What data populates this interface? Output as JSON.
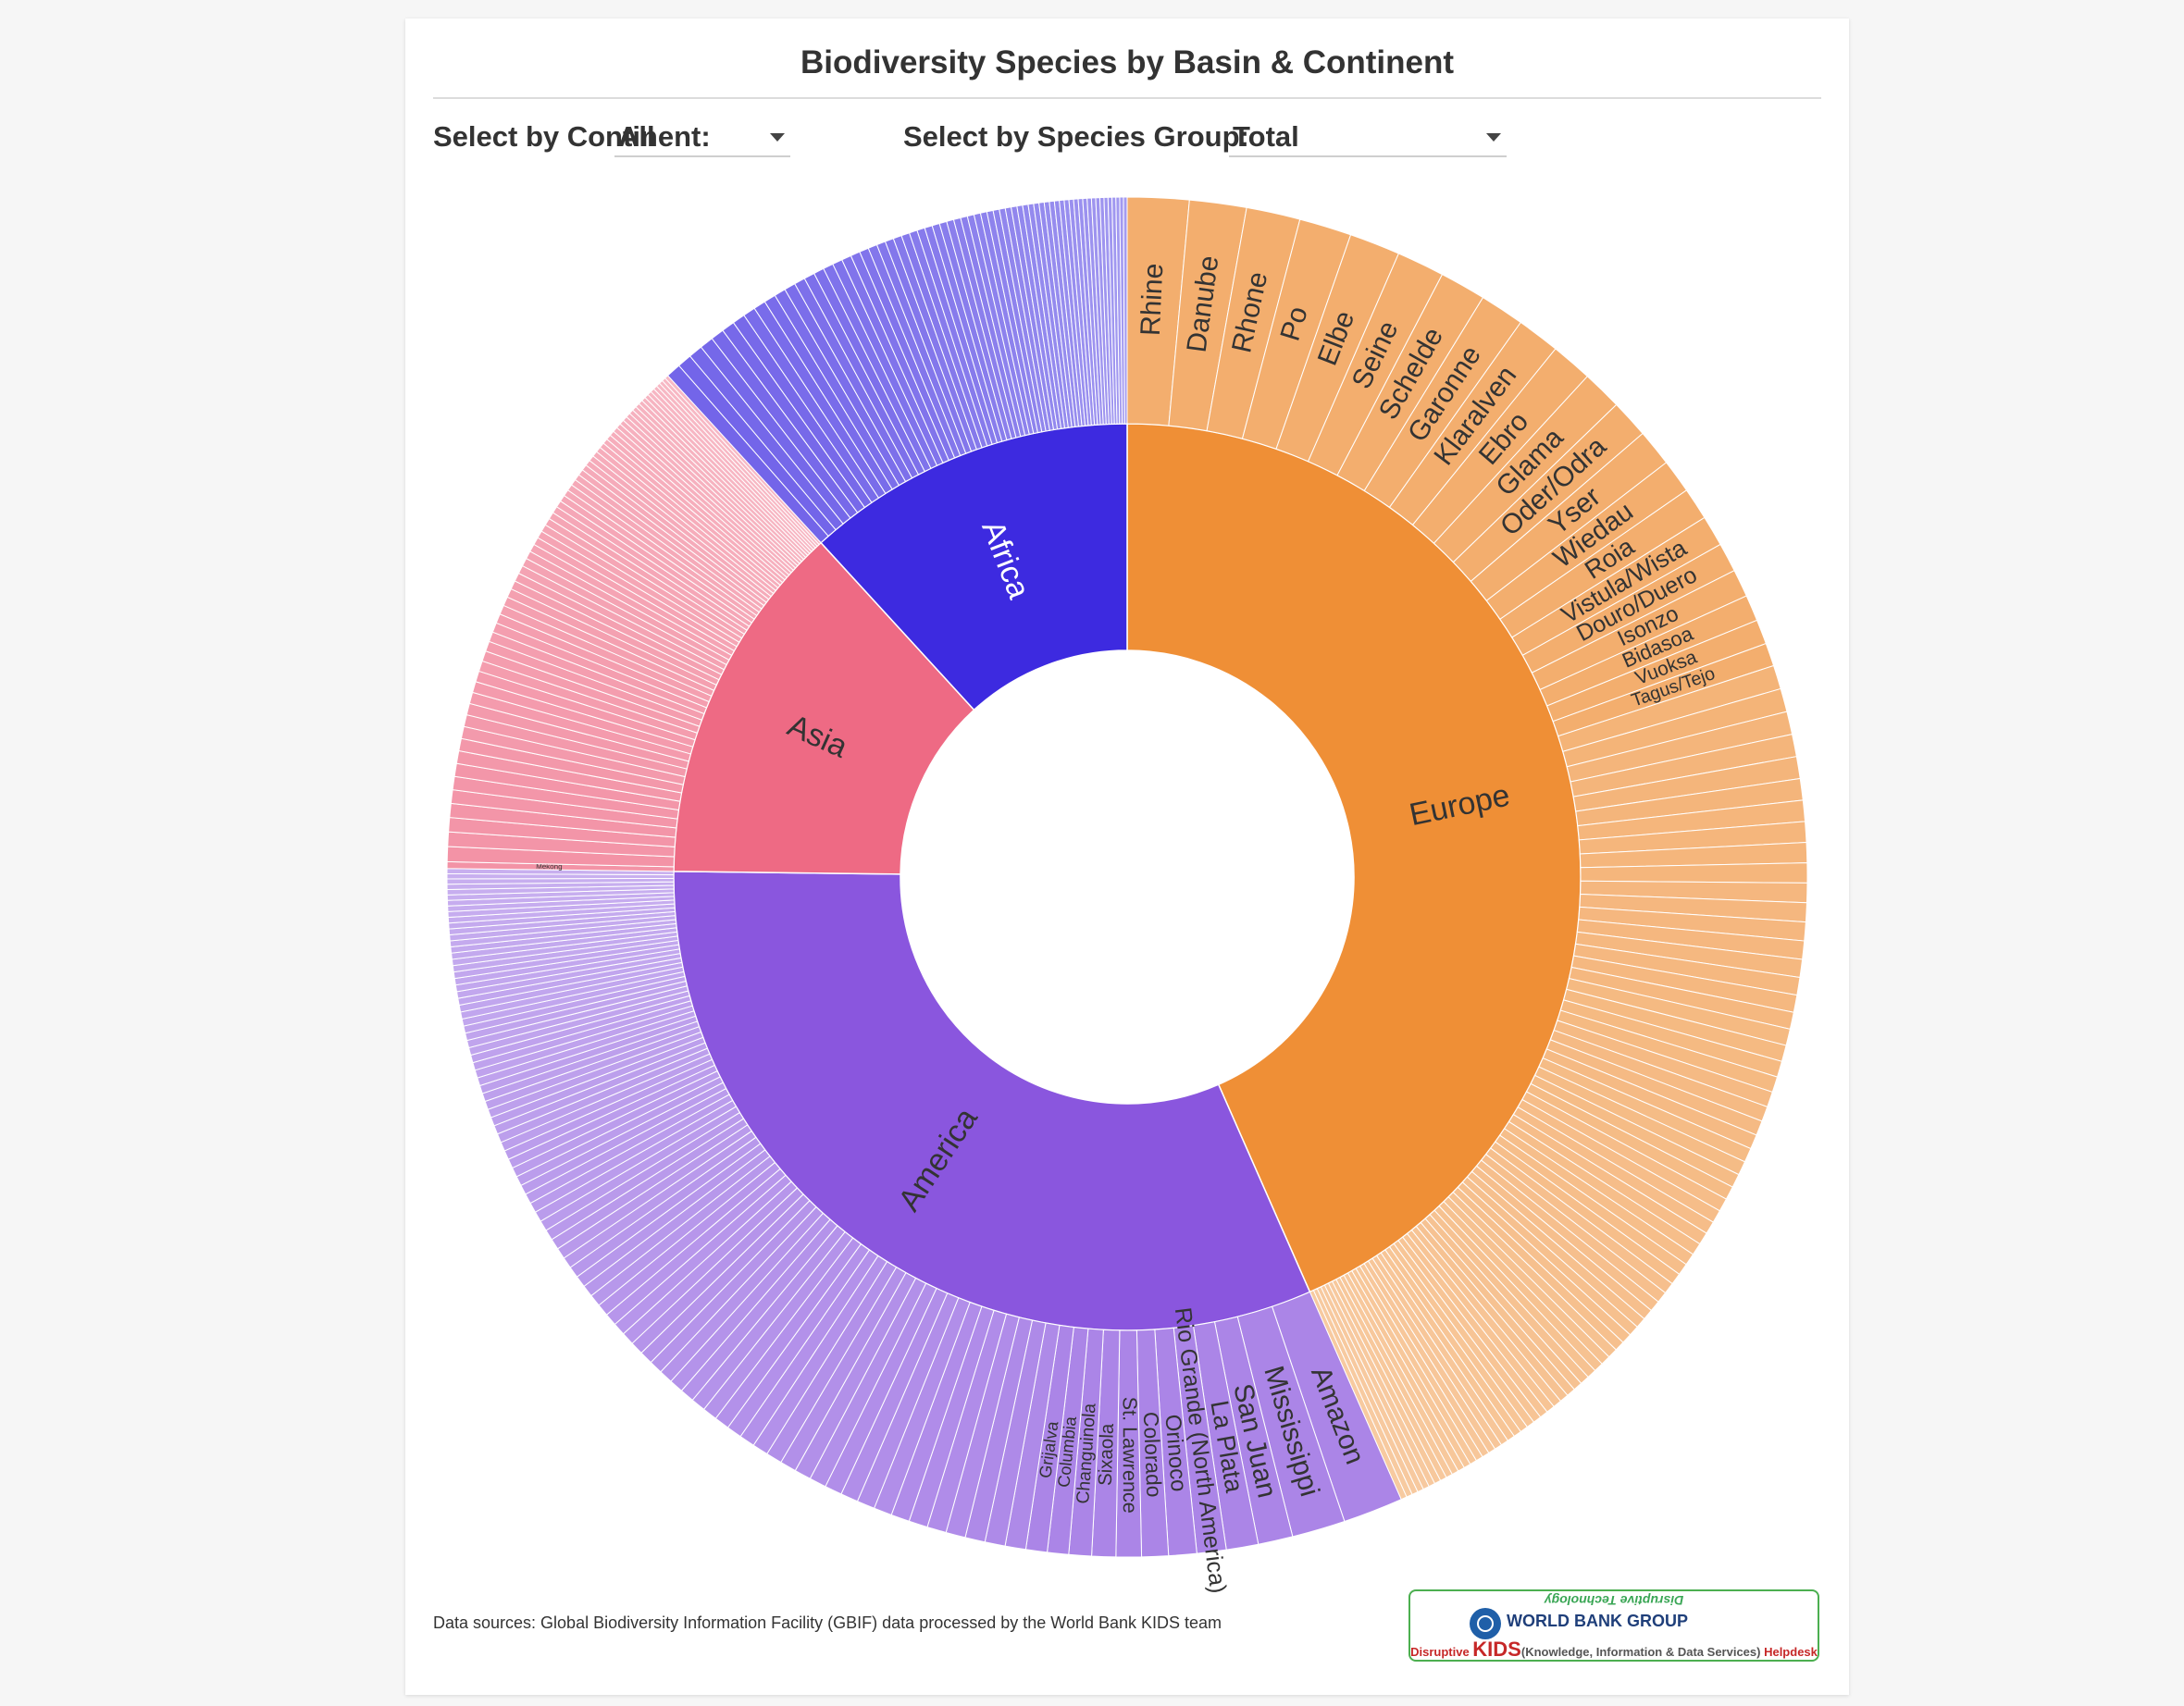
{
  "title": "Biodiversity Species by Basin & Continent",
  "filters": {
    "continent_label": "Select by Continent:",
    "continent_value": "All",
    "species_label": "Select by Species Group:",
    "species_value": "Total"
  },
  "footer": "Data sources: Global Biodiversity Information Facility (GBIF) data processed by the World Bank KIDS team",
  "logo": {
    "top_text": "Disruptive Technology",
    "name": "WORLD BANK GROUP",
    "tag_prefix": "Disruptive ",
    "tag_kids": "KIDS",
    "tag_rest": "(Knowledge, Information & Data Services) ",
    "tag_help": "Helpdesk"
  },
  "chart_data": {
    "type": "sunburst",
    "colors": {
      "Europe": "#ef8f36",
      "America": "#8a56de",
      "Asia": "#ee6a84",
      "Africa": "#3d2ae0"
    },
    "continents": [
      {
        "name": "Europe",
        "value": 0.434,
        "basins_labeled": [
          "Rhine",
          "Danube",
          "Rhone",
          "Po",
          "Elbe",
          "Seine",
          "Schelde",
          "Garonne",
          "Klaralven",
          "Ebro",
          "Glama",
          "Oder/Odra",
          "Yser",
          "Wiedau",
          "Roia",
          "Vistula/Wista",
          "Douro/Duero",
          "Isonzo",
          "Bidasoa",
          "Vuoksa",
          "Tagus/Tejo"
        ],
        "basin_weights": [
          40,
          37,
          35,
          34,
          33,
          31,
          30,
          29,
          28,
          27,
          26,
          25,
          24,
          22,
          21,
          20,
          19,
          18,
          17,
          16,
          15
        ],
        "unlabeled_basin_count": 80
      },
      {
        "name": "America",
        "value": 0.318,
        "basins_labeled": [
          "Amazon",
          "Mississippi",
          "San Juan",
          "La Plata",
          "Rio Grande (North America)",
          "Orinoco",
          "Colorado",
          "St. Lawrence",
          "Sixaola",
          "Changuinola",
          "Columbia",
          "Grijalva"
        ],
        "basin_weights": [
          45,
          40,
          26,
          24,
          22,
          21,
          20,
          19,
          18,
          17,
          16,
          16
        ],
        "unlabeled_basin_count": 90
      },
      {
        "name": "Asia",
        "value": 0.13,
        "basins_labeled": [
          "Mekong"
        ],
        "basin_weights": [
          7
        ],
        "unlabeled_basin_count": 70
      },
      {
        "name": "Africa",
        "value": 0.118,
        "basins_labeled": [],
        "basin_weights": [],
        "unlabeled_basin_count": 65
      }
    ]
  }
}
